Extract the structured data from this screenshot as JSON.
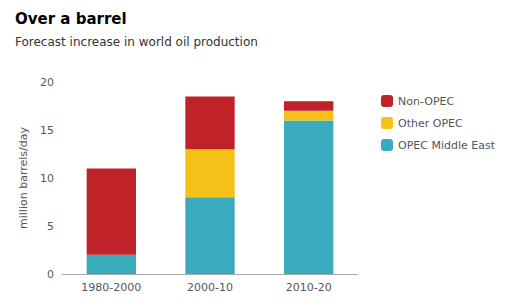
{
  "chart_data": {
    "type": "bar",
    "title": "Over a barrel",
    "subtitle": "Forecast increase in world oil production",
    "categories": [
      "1980-2000",
      "2000-10",
      "2010-20"
    ],
    "series": [
      {
        "name": "OPEC Middle East",
        "color": "#3AABBC",
        "values": [
          2,
          8,
          16
        ]
      },
      {
        "name": "Other OPEC",
        "color": "#F5C118",
        "values": [
          0,
          5,
          1
        ]
      },
      {
        "name": "Non-OPEC",
        "color": "#C0222A",
        "values": [
          9,
          5.5,
          1
        ]
      }
    ],
    "ylabel": "million barrels/day",
    "ylim": [
      0,
      20
    ],
    "yticks": [
      0,
      5,
      10,
      15,
      20
    ],
    "stacked": true,
    "grid": false,
    "legend": "right"
  }
}
